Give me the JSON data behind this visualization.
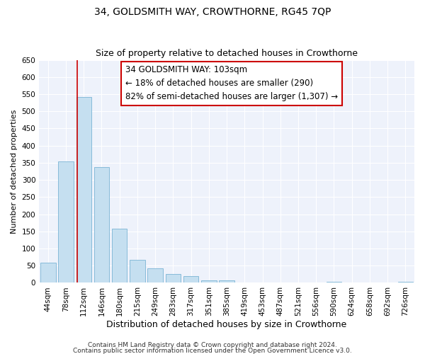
{
  "title": "34, GOLDSMITH WAY, CROWTHORNE, RG45 7QP",
  "subtitle": "Size of property relative to detached houses in Crowthorne",
  "xlabel": "Distribution of detached houses by size in Crowthorne",
  "ylabel": "Number of detached properties",
  "bar_labels": [
    "44sqm",
    "78sqm",
    "112sqm",
    "146sqm",
    "180sqm",
    "215sqm",
    "249sqm",
    "283sqm",
    "317sqm",
    "351sqm",
    "385sqm",
    "419sqm",
    "453sqm",
    "487sqm",
    "521sqm",
    "556sqm",
    "590sqm",
    "624sqm",
    "658sqm",
    "692sqm",
    "726sqm"
  ],
  "bar_values": [
    58,
    353,
    542,
    338,
    158,
    68,
    42,
    25,
    20,
    7,
    7,
    0,
    0,
    0,
    0,
    0,
    3,
    0,
    0,
    0,
    2
  ],
  "bar_color": "#c5dff0",
  "bar_edge_color": "#7ab4d4",
  "property_line_x": 1.62,
  "annotation_line1": "34 GOLDSMITH WAY: 103sqm",
  "annotation_line2": "← 18% of detached houses are smaller (290)",
  "annotation_line3": "82% of semi-detached houses are larger (1,307) →",
  "annotation_box_color": "#ffffff",
  "annotation_box_edge_color": "#cc0000",
  "line_color": "#cc0000",
  "ylim": [
    0,
    650
  ],
  "yticks": [
    0,
    50,
    100,
    150,
    200,
    250,
    300,
    350,
    400,
    450,
    500,
    550,
    600,
    650
  ],
  "footer_line1": "Contains HM Land Registry data © Crown copyright and database right 2024.",
  "footer_line2": "Contains public sector information licensed under the Open Government Licence v3.0.",
  "bg_color": "#ffffff",
  "plot_bg_color": "#eef2fb",
  "title_fontsize": 10,
  "subtitle_fontsize": 9,
  "xlabel_fontsize": 9,
  "ylabel_fontsize": 8,
  "tick_fontsize": 7.5,
  "annotation_fontsize": 8.5,
  "footer_fontsize": 6.5
}
